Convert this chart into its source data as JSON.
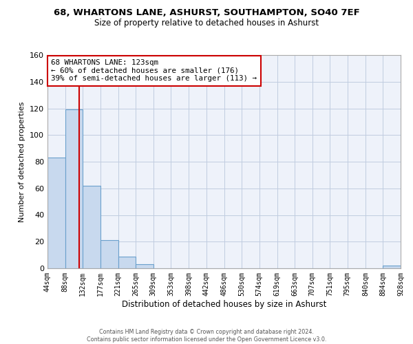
{
  "title": "68, WHARTONS LANE, ASHURST, SOUTHAMPTON, SO40 7EF",
  "subtitle": "Size of property relative to detached houses in Ashurst",
  "xlabel": "Distribution of detached houses by size in Ashurst",
  "ylabel": "Number of detached properties",
  "bin_edges": [
    44,
    88,
    132,
    177,
    221,
    265,
    309,
    353,
    398,
    442,
    486,
    530,
    574,
    619,
    663,
    707,
    751,
    795,
    840,
    884,
    928
  ],
  "bar_heights": [
    83,
    119,
    62,
    21,
    9,
    3,
    0,
    0,
    0,
    0,
    0,
    0,
    0,
    0,
    0,
    0,
    0,
    0,
    0,
    2
  ],
  "bar_color": "#c8d9ee",
  "bar_edge_color": "#6aa0cc",
  "property_line_x": 123,
  "property_line_color": "#cc0000",
  "annotation_box_text": "68 WHARTONS LANE: 123sqm\n← 60% of detached houses are smaller (176)\n39% of semi-detached houses are larger (113) →",
  "annotation_box_color": "#cc0000",
  "ylim": [
    0,
    160
  ],
  "yticks": [
    0,
    20,
    40,
    60,
    80,
    100,
    120,
    140,
    160
  ],
  "tick_labels": [
    "44sqm",
    "88sqm",
    "132sqm",
    "177sqm",
    "221sqm",
    "265sqm",
    "309sqm",
    "353sqm",
    "398sqm",
    "442sqm",
    "486sqm",
    "530sqm",
    "574sqm",
    "619sqm",
    "663sqm",
    "707sqm",
    "751sqm",
    "795sqm",
    "840sqm",
    "884sqm",
    "928sqm"
  ],
  "footer_line1": "Contains HM Land Registry data © Crown copyright and database right 2024.",
  "footer_line2": "Contains public sector information licensed under the Open Government Licence v3.0.",
  "background_color": "#eef2fa",
  "grid_color": "#c0cce0",
  "fig_width": 6.0,
  "fig_height": 5.0,
  "dpi": 100
}
